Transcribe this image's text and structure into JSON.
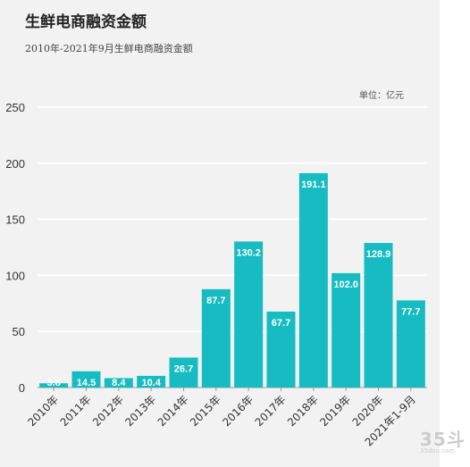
{
  "title": "生鲜电商融资金额",
  "subtitle": "2010年-2021年9月生鲜电商融资金额",
  "unit_label": "单位：亿元",
  "watermark": {
    "big": "35斗",
    "small": "35dou.com"
  },
  "colors": {
    "bar": "#16bcc2",
    "grid": "#ffffff",
    "axis": "#9a9a9a",
    "label": "#ffffff",
    "tick": "#333333"
  },
  "chart_data": {
    "type": "bar",
    "title": "生鲜电商融资金额",
    "subtitle": "2010年-2021年9月生鲜电商融资金额",
    "xlabel": "",
    "ylabel": "",
    "unit": "单位：亿元",
    "categories": [
      "2010年",
      "2011年",
      "2012年",
      "2013年",
      "2014年",
      "2015年",
      "2016年",
      "2017年",
      "2018年",
      "2019年",
      "2020年",
      "2021年1-9月"
    ],
    "values": [
      3.8,
      14.5,
      8.4,
      10.4,
      26.7,
      87.7,
      130.2,
      67.7,
      191.1,
      102.0,
      128.9,
      77.7
    ],
    "value_labels": [
      "3.8",
      "14.5",
      "8.4",
      "10.4",
      "26.7",
      "87.7",
      "130.2",
      "67.7",
      "191.1",
      "102.0",
      "128.9",
      "77.7"
    ],
    "ylim": [
      0,
      250
    ],
    "yticks": [
      "0",
      "50",
      "100",
      "150",
      "200",
      "250"
    ],
    "grid": true,
    "legend": "none"
  }
}
